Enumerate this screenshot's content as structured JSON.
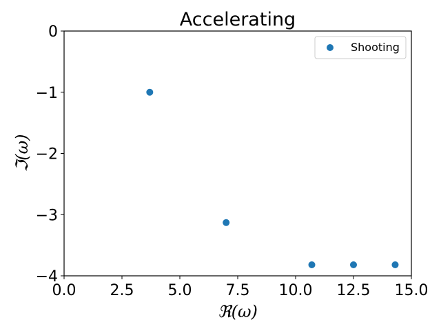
{
  "chart_data": {
    "type": "scatter",
    "title": "Accelerating",
    "xlabel": "ℜ(ω)",
    "ylabel": "ℑ(ω)",
    "xlim": [
      0,
      15
    ],
    "ylim": [
      -4,
      0
    ],
    "xticks": [
      "0.0",
      "2.5",
      "5.0",
      "7.5",
      "10.0",
      "12.5",
      "15.0"
    ],
    "yticks": [
      "0",
      "−1",
      "−2",
      "−3",
      "−4"
    ],
    "grid": false,
    "legend_position": "top-right",
    "colors": {
      "series": "#1f77b4"
    },
    "series": [
      {
        "name": "Shooting",
        "x": [
          3.7,
          7.0,
          10.7,
          12.5,
          14.3
        ],
        "y": [
          -1.0,
          -3.13,
          -3.82,
          -3.82,
          -3.82
        ]
      }
    ]
  }
}
